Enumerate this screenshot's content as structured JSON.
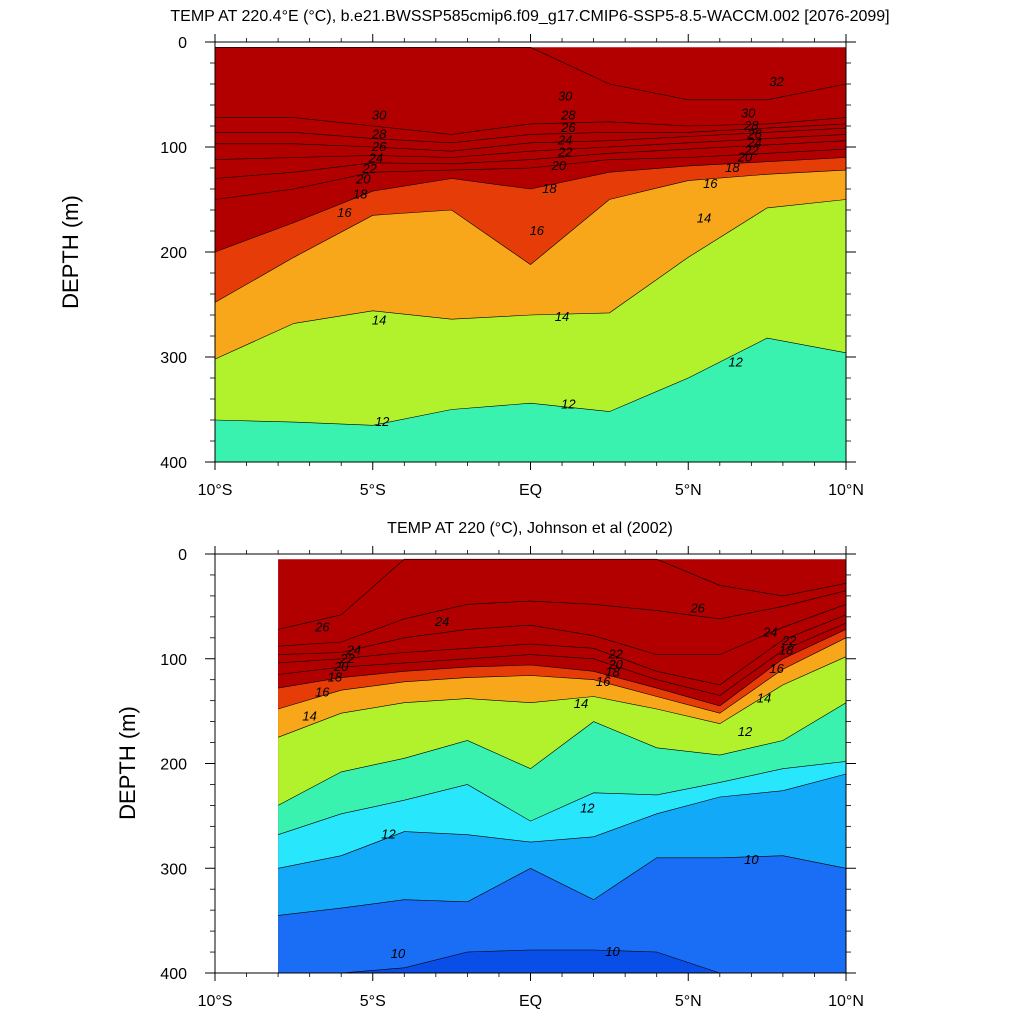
{
  "chart_data": [
    {
      "type": "heatmap",
      "title": "TEMP AT 220.4°E (°C), b.e21.BWSSP585cmip6.f09_g17.CMIP6-SSP5-8.5-WACCM.002 [2076-2099]",
      "xlabel": "",
      "ylabel": "DEPTH (m)",
      "xlim": [
        -10,
        10
      ],
      "ylim": [
        0,
        400
      ],
      "y_reversed": true,
      "x_tick_values": [
        -10,
        -5,
        0,
        5,
        10
      ],
      "x_tick_labels": [
        "10°S",
        "5°S",
        "EQ",
        "5°N",
        "10°N"
      ],
      "y_tick_values": [
        0,
        100,
        200,
        300,
        400
      ],
      "y_tick_labels": [
        "0",
        "100",
        "200",
        "300",
        "400"
      ],
      "data_xlim": [
        -10,
        10
      ],
      "data_top": 5,
      "x": [
        -10,
        -7.5,
        -5,
        -2.5,
        0,
        2.5,
        5,
        7.5,
        10
      ],
      "isotherm_depths": [
        {
          "temp": 32,
          "depths": [
            null,
            null,
            null,
            null,
            5,
            40,
            55,
            55,
            40
          ]
        },
        {
          "temp": 30,
          "depths": [
            72,
            72,
            80,
            88,
            78,
            76,
            80,
            78,
            72
          ]
        },
        {
          "temp": 28,
          "depths": [
            86,
            86,
            92,
            96,
            88,
            86,
            86,
            82,
            78
          ]
        },
        {
          "temp": 26,
          "depths": [
            97,
            97,
            100,
            104,
            96,
            94,
            90,
            86,
            82
          ]
        },
        {
          "temp": 24,
          "depths": [
            112,
            110,
            108,
            110,
            104,
            100,
            96,
            92,
            88
          ]
        },
        {
          "temp": 22,
          "depths": [
            130,
            124,
            115,
            116,
            112,
            106,
            102,
            98,
            94
          ]
        },
        {
          "temp": 20,
          "depths": [
            150,
            140,
            124,
            122,
            120,
            112,
            110,
            106,
            102
          ]
        },
        {
          "temp": 18,
          "depths": [
            200,
            172,
            142,
            130,
            140,
            124,
            118,
            114,
            110
          ]
        },
        {
          "temp": 16,
          "depths": [
            248,
            205,
            165,
            160,
            212,
            150,
            132,
            126,
            122
          ]
        },
        {
          "temp": 14,
          "depths": [
            302,
            268,
            256,
            264,
            260,
            258,
            205,
            158,
            150
          ]
        },
        {
          "temp": 12,
          "depths": [
            360,
            362,
            365,
            350,
            344,
            352,
            320,
            282,
            296
          ]
        }
      ],
      "contour_labels": [
        {
          "x": -4.8,
          "y": 70,
          "text": "30"
        },
        {
          "x": -4.8,
          "y": 88,
          "text": "28"
        },
        {
          "x": -4.8,
          "y": 100,
          "text": "26"
        },
        {
          "x": -4.9,
          "y": 111,
          "text": "24"
        },
        {
          "x": -5.1,
          "y": 121,
          "text": "22"
        },
        {
          "x": -5.3,
          "y": 131,
          "text": "20"
        },
        {
          "x": -5.4,
          "y": 145,
          "text": "18"
        },
        {
          "x": -5.9,
          "y": 163,
          "text": "16"
        },
        {
          "x": 1.1,
          "y": 52,
          "text": "30"
        },
        {
          "x": 1.2,
          "y": 70,
          "text": "28"
        },
        {
          "x": 1.2,
          "y": 82,
          "text": "26"
        },
        {
          "x": 1.1,
          "y": 94,
          "text": "24"
        },
        {
          "x": 1.1,
          "y": 105,
          "text": "22"
        },
        {
          "x": 0.9,
          "y": 118,
          "text": "20"
        },
        {
          "x": 0.6,
          "y": 140,
          "text": "18"
        },
        {
          "x": 0.2,
          "y": 180,
          "text": "16"
        },
        {
          "x": 7.8,
          "y": 38,
          "text": "32"
        },
        {
          "x": 6.9,
          "y": 68,
          "text": "30"
        },
        {
          "x": 7.0,
          "y": 80,
          "text": "28"
        },
        {
          "x": 7.1,
          "y": 88,
          "text": "26"
        },
        {
          "x": 7.1,
          "y": 96,
          "text": "24"
        },
        {
          "x": 7.0,
          "y": 104,
          "text": "22"
        },
        {
          "x": 6.8,
          "y": 110,
          "text": "20"
        },
        {
          "x": 6.4,
          "y": 120,
          "text": "18"
        },
        {
          "x": 5.7,
          "y": 135,
          "text": "16"
        },
        {
          "x": 5.5,
          "y": 168,
          "text": "14"
        },
        {
          "x": -4.8,
          "y": 265,
          "text": "14"
        },
        {
          "x": 1.0,
          "y": 262,
          "text": "14"
        },
        {
          "x": 6.5,
          "y": 305,
          "text": "12"
        },
        {
          "x": -4.7,
          "y": 362,
          "text": "12"
        },
        {
          "x": 1.2,
          "y": 345,
          "text": "12"
        }
      ]
    },
    {
      "type": "heatmap",
      "title": "TEMP AT 220 (°C), Johnson et al (2002)",
      "xlabel": "",
      "ylabel": "DEPTH (m)",
      "xlim": [
        -10,
        10
      ],
      "ylim": [
        0,
        400
      ],
      "y_reversed": true,
      "x_tick_values": [
        -10,
        -5,
        0,
        5,
        10
      ],
      "x_tick_labels": [
        "10°S",
        "5°S",
        "EQ",
        "5°N",
        "10°N"
      ],
      "y_tick_values": [
        0,
        100,
        200,
        300,
        400
      ],
      "y_tick_labels": [
        "0",
        "100",
        "200",
        "300",
        "400"
      ],
      "data_xlim": [
        -8,
        10
      ],
      "data_top": 5,
      "x": [
        -8,
        -6,
        -4,
        -2,
        0,
        2,
        4,
        6,
        8,
        10
      ],
      "isotherm_depths": [
        {
          "temp": 28,
          "depths": [
            72,
            58,
            5,
            5,
            5,
            5,
            5,
            30,
            40,
            28
          ]
        },
        {
          "temp": 26,
          "depths": [
            88,
            84,
            62,
            48,
            45,
            48,
            54,
            62,
            50,
            35
          ]
        },
        {
          "temp": 24,
          "depths": [
            96,
            94,
            80,
            72,
            68,
            78,
            96,
            96,
            70,
            48
          ]
        },
        {
          "temp": 22,
          "depths": [
            104,
            100,
            94,
            90,
            86,
            90,
            112,
            125,
            82,
            58
          ]
        },
        {
          "temp": 20,
          "depths": [
            115,
            108,
            104,
            100,
            96,
            100,
            120,
            135,
            92,
            66
          ]
        },
        {
          "temp": 18,
          "depths": [
            128,
            118,
            112,
            108,
            106,
            112,
            128,
            145,
            100,
            72
          ]
        },
        {
          "temp": 16,
          "depths": [
            148,
            130,
            122,
            118,
            116,
            120,
            136,
            152,
            110,
            80
          ]
        },
        {
          "temp": 14,
          "depths": [
            175,
            152,
            142,
            138,
            142,
            136,
            148,
            162,
            125,
            98
          ]
        },
        {
          "temp": 12,
          "depths": [
            240,
            208,
            195,
            178,
            205,
            160,
            185,
            192,
            178,
            142
          ]
        },
        {
          "temp": 11,
          "depths": [
            268,
            248,
            235,
            220,
            255,
            228,
            230,
            218,
            205,
            198
          ]
        },
        {
          "temp": 10,
          "depths": [
            300,
            288,
            265,
            268,
            275,
            270,
            248,
            232,
            226,
            210
          ]
        },
        {
          "temp": 9,
          "depths": [
            345,
            338,
            330,
            332,
            300,
            330,
            290,
            290,
            288,
            300
          ]
        },
        {
          "temp": 8,
          "depths": [
            400,
            400,
            395,
            380,
            378,
            378,
            380,
            400,
            400,
            400
          ]
        }
      ],
      "contour_labels": [
        {
          "x": -6.6,
          "y": 70,
          "text": "26"
        },
        {
          "x": -5.6,
          "y": 92,
          "text": "24"
        },
        {
          "x": -5.8,
          "y": 100,
          "text": "22"
        },
        {
          "x": -6.0,
          "y": 108,
          "text": "20"
        },
        {
          "x": -6.2,
          "y": 118,
          "text": "18"
        },
        {
          "x": -6.6,
          "y": 132,
          "text": "16"
        },
        {
          "x": -7.0,
          "y": 155,
          "text": "14"
        },
        {
          "x": -2.8,
          "y": 65,
          "text": "24"
        },
        {
          "x": 2.7,
          "y": 96,
          "text": "22"
        },
        {
          "x": 2.7,
          "y": 106,
          "text": "20"
        },
        {
          "x": 2.6,
          "y": 113,
          "text": "18"
        },
        {
          "x": 2.3,
          "y": 122,
          "text": "16"
        },
        {
          "x": 1.6,
          "y": 143,
          "text": "14"
        },
        {
          "x": 5.3,
          "y": 52,
          "text": "26"
        },
        {
          "x": 7.6,
          "y": 75,
          "text": "24"
        },
        {
          "x": 8.2,
          "y": 83,
          "text": "22"
        },
        {
          "x": 8.1,
          "y": 92,
          "text": "18"
        },
        {
          "x": 7.8,
          "y": 110,
          "text": "16"
        },
        {
          "x": 7.4,
          "y": 138,
          "text": "14"
        },
        {
          "x": 6.8,
          "y": 170,
          "text": "12"
        },
        {
          "x": -4.5,
          "y": 268,
          "text": "12"
        },
        {
          "x": 1.8,
          "y": 243,
          "text": "12"
        },
        {
          "x": -4.2,
          "y": 382,
          "text": "10"
        },
        {
          "x": 2.6,
          "y": 380,
          "text": "10"
        },
        {
          "x": 7.0,
          "y": 292,
          "text": "10"
        }
      ]
    }
  ],
  "colors": {
    "palette": [
      "#0a4ee8",
      "#1a6ef5",
      "#1a8ff5",
      "#12aaf8",
      "#1ec8f9",
      "#28e6fb",
      "#34f7e6",
      "#3af2b0",
      "#30ec6a",
      "#1fe31f",
      "#66ee2a",
      "#b2f22c",
      "#f2f21d",
      "#fadb1d",
      "#fcbe1a",
      "#f9a71a",
      "#f48d12",
      "#ee7410",
      "#ea5b0c",
      "#e63d08",
      "#de2304",
      "#d20f00",
      "#c20000",
      "#b20000"
    ],
    "palette_min_temp": 8
  }
}
